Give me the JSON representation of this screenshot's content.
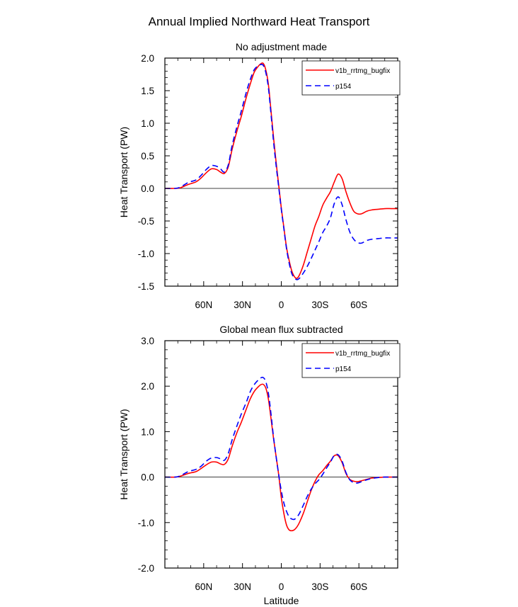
{
  "title": "Annual Implied Northward Heat Transport",
  "colors": {
    "series1": "#ff0000",
    "series2": "#0000ff",
    "axis": "#000000",
    "zero": "#000000"
  },
  "chart_data": [
    {
      "type": "line",
      "title": "No adjustment made",
      "xlabel": "",
      "ylabel": "Heat Transport (PW)",
      "xlim": [
        90,
        -90
      ],
      "ylim": [
        -1.5,
        2.0
      ],
      "xticks": [
        60,
        30,
        0,
        -30,
        -60
      ],
      "xtick_labels": [
        "60N",
        "30N",
        "0",
        "30S",
        "60S"
      ],
      "yticks": [
        -1.5,
        -1.0,
        -0.5,
        0.0,
        0.5,
        1.0,
        1.5,
        2.0
      ],
      "ytick_labels": [
        "-1.5",
        "-1.0",
        "-0.5",
        "0.0",
        "0.5",
        "1.0",
        "1.5",
        "2.0"
      ],
      "legend": {
        "position": "top-right",
        "entries": [
          "v1b_rrtmg_bugfix",
          "p154"
        ]
      },
      "series": [
        {
          "name": "v1b_rrtmg_bugfix",
          "style": "solid",
          "x": [
            90,
            82,
            78,
            72,
            66,
            62,
            58,
            54,
            50,
            47,
            44,
            41,
            38,
            34,
            31,
            27,
            24,
            21,
            18,
            16,
            14,
            12,
            10,
            8,
            6,
            4,
            2,
            0,
            -2,
            -4,
            -6,
            -8,
            -10,
            -12,
            -14,
            -17,
            -20,
            -23,
            -26,
            -29,
            -32,
            -35,
            -38,
            -41,
            -44,
            -47,
            -50,
            -53,
            -56,
            -59,
            -62,
            -66,
            -70,
            -75,
            -80,
            -85,
            -90
          ],
          "values": [
            0.0,
            0.0,
            0.01,
            0.06,
            0.1,
            0.16,
            0.24,
            0.3,
            0.29,
            0.25,
            0.23,
            0.33,
            0.6,
            0.9,
            1.1,
            1.4,
            1.6,
            1.78,
            1.87,
            1.91,
            1.92,
            1.82,
            1.6,
            1.2,
            0.78,
            0.4,
            0.05,
            -0.3,
            -0.6,
            -0.9,
            -1.1,
            -1.26,
            -1.35,
            -1.38,
            -1.33,
            -1.18,
            -0.98,
            -0.78,
            -0.58,
            -0.43,
            -0.26,
            -0.15,
            -0.05,
            0.1,
            0.22,
            0.15,
            -0.05,
            -0.22,
            -0.35,
            -0.39,
            -0.39,
            -0.35,
            -0.33,
            -0.32,
            -0.31,
            -0.31,
            -0.31
          ]
        },
        {
          "name": "p154",
          "style": "dashed",
          "x": [
            90,
            82,
            78,
            72,
            66,
            62,
            58,
            54,
            50,
            47,
            44,
            41,
            38,
            34,
            31,
            27,
            24,
            21,
            18,
            16,
            14,
            12,
            10,
            8,
            6,
            4,
            2,
            0,
            -2,
            -4,
            -6,
            -8,
            -10,
            -12,
            -14,
            -17,
            -20,
            -23,
            -26,
            -29,
            -32,
            -35,
            -38,
            -41,
            -44,
            -47,
            -50,
            -53,
            -56,
            -59,
            -62,
            -66,
            -70,
            -75,
            -80,
            -85,
            -90
          ],
          "values": [
            0.0,
            0.0,
            0.02,
            0.09,
            0.13,
            0.2,
            0.29,
            0.35,
            0.34,
            0.3,
            0.25,
            0.36,
            0.66,
            0.97,
            1.18,
            1.48,
            1.67,
            1.82,
            1.88,
            1.9,
            1.89,
            1.78,
            1.55,
            1.15,
            0.72,
            0.35,
            0.02,
            -0.32,
            -0.62,
            -0.92,
            -1.14,
            -1.3,
            -1.37,
            -1.4,
            -1.38,
            -1.3,
            -1.2,
            -1.08,
            -0.95,
            -0.82,
            -0.68,
            -0.58,
            -0.45,
            -0.23,
            -0.13,
            -0.25,
            -0.48,
            -0.67,
            -0.78,
            -0.83,
            -0.84,
            -0.8,
            -0.78,
            -0.77,
            -0.76,
            -0.76,
            -0.76
          ]
        }
      ]
    },
    {
      "type": "line",
      "title": "Global mean flux subtracted",
      "xlabel": "Latitude",
      "ylabel": "Heat Transport (PW)",
      "xlim": [
        90,
        -90
      ],
      "ylim": [
        -2.0,
        3.0
      ],
      "xticks": [
        60,
        30,
        0,
        -30,
        -60
      ],
      "xtick_labels": [
        "60N",
        "30N",
        "0",
        "30S",
        "60S"
      ],
      "yticks": [
        -2.0,
        -1.0,
        0.0,
        1.0,
        2.0,
        3.0
      ],
      "ytick_labels": [
        "-2.0",
        "-1.0",
        "0.0",
        "1.0",
        "2.0",
        "3.0"
      ],
      "legend": {
        "position": "top-right",
        "entries": [
          "v1b_rrtmg_bugfix",
          "p154"
        ]
      },
      "series": [
        {
          "name": "v1b_rrtmg_bugfix",
          "style": "solid",
          "x": [
            90,
            82,
            78,
            72,
            66,
            62,
            58,
            54,
            50,
            47,
            44,
            41,
            38,
            34,
            31,
            27,
            24,
            21,
            18,
            16,
            14,
            12,
            10,
            8,
            6,
            4,
            2,
            0,
            -2,
            -4,
            -6,
            -8,
            -10,
            -12,
            -14,
            -17,
            -20,
            -23,
            -26,
            -29,
            -32,
            -35,
            -38,
            -41,
            -44,
            -47,
            -50,
            -53,
            -56,
            -59,
            -62,
            -66,
            -70,
            -75,
            -80,
            -85,
            -90
          ],
          "values": [
            0.0,
            0.0,
            0.02,
            0.08,
            0.12,
            0.19,
            0.27,
            0.33,
            0.33,
            0.29,
            0.28,
            0.4,
            0.68,
            1.0,
            1.2,
            1.5,
            1.72,
            1.88,
            1.98,
            2.03,
            2.04,
            1.96,
            1.72,
            1.3,
            0.85,
            0.45,
            0.05,
            -0.45,
            -0.8,
            -1.05,
            -1.16,
            -1.18,
            -1.16,
            -1.1,
            -1.0,
            -0.8,
            -0.55,
            -0.3,
            -0.1,
            0.05,
            0.14,
            0.25,
            0.35,
            0.47,
            0.47,
            0.32,
            0.08,
            -0.05,
            -0.09,
            -0.1,
            -0.08,
            -0.05,
            -0.02,
            -0.01,
            0.0,
            0.0,
            0.0
          ]
        },
        {
          "name": "p154",
          "style": "dashed",
          "x": [
            90,
            82,
            78,
            72,
            66,
            62,
            58,
            54,
            50,
            47,
            44,
            41,
            38,
            34,
            31,
            27,
            24,
            21,
            18,
            16,
            14,
            12,
            10,
            8,
            6,
            4,
            2,
            0,
            -2,
            -4,
            -6,
            -8,
            -10,
            -12,
            -14,
            -17,
            -20,
            -23,
            -26,
            -29,
            -32,
            -35,
            -38,
            -41,
            -44,
            -47,
            -50,
            -53,
            -56,
            -59,
            -62,
            -66,
            -70,
            -75,
            -80,
            -85,
            -90
          ],
          "values": [
            0.0,
            0.0,
            0.03,
            0.12,
            0.17,
            0.24,
            0.35,
            0.42,
            0.43,
            0.4,
            0.37,
            0.52,
            0.82,
            1.15,
            1.38,
            1.65,
            1.88,
            2.03,
            2.13,
            2.18,
            2.19,
            2.1,
            1.85,
            1.4,
            0.88,
            0.45,
            0.05,
            -0.3,
            -0.57,
            -0.75,
            -0.87,
            -0.92,
            -0.93,
            -0.88,
            -0.8,
            -0.62,
            -0.43,
            -0.27,
            -0.15,
            -0.06,
            0.06,
            0.2,
            0.33,
            0.48,
            0.49,
            0.35,
            0.1,
            -0.06,
            -0.12,
            -0.13,
            -0.1,
            -0.06,
            -0.03,
            -0.01,
            0.0,
            0.0,
            0.0
          ]
        }
      ]
    }
  ]
}
